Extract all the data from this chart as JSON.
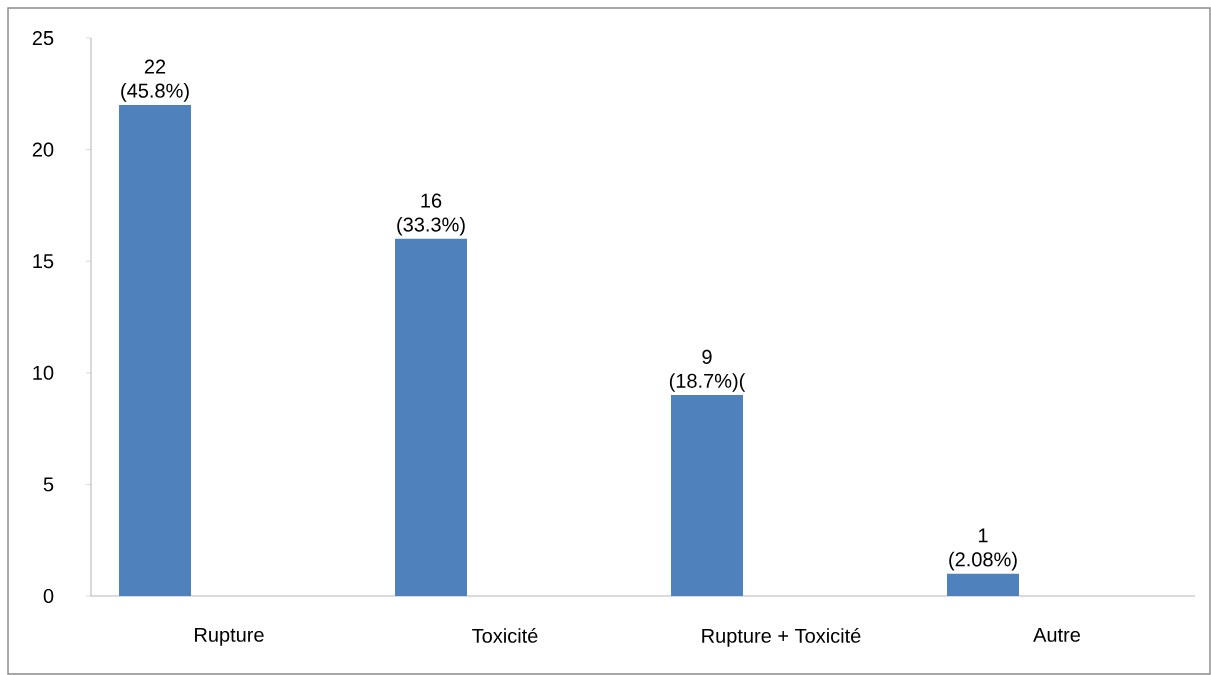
{
  "chart_data": {
    "type": "bar",
    "categories": [
      "Rupture",
      "Toxicité",
      "Rupture + Toxicité",
      "Autre"
    ],
    "values": [
      22,
      16,
      9,
      1
    ],
    "value_labels": [
      "22 (45.8%)",
      "16 (33.3%)",
      "9 (18.7%)(",
      "1 (2.08%)"
    ],
    "color": "#4f81bd",
    "ylim": [
      0,
      25
    ],
    "yticks": [
      0,
      5,
      10,
      15,
      20,
      25
    ]
  }
}
